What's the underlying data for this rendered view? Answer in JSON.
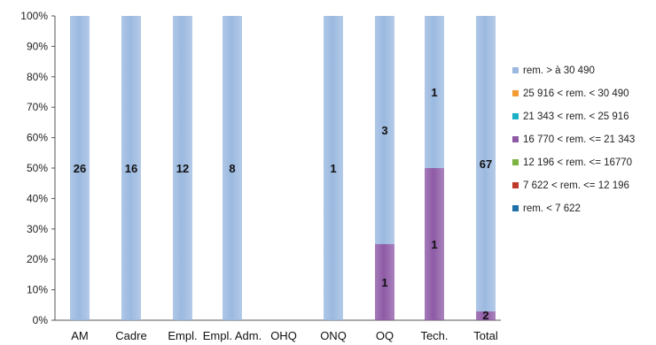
{
  "chart_data": {
    "type": "bar",
    "stacked": "percent",
    "categories": [
      "AM",
      "Cadre",
      "Empl.",
      "Empl. Adm.",
      "OHQ",
      "ONQ",
      "OQ",
      "Tech.",
      "Total"
    ],
    "category_labels_printed": [
      "AM",
      "Cadre",
      "Empl.",
      "Empl. Adm.",
      "OHQ",
      "ONQ",
      "OQ",
      "Tech.",
      "Total"
    ],
    "ylim": [
      0,
      100
    ],
    "y_ticks": [
      "0%",
      "10%",
      "20%",
      "30%",
      "40%",
      "50%",
      "60%",
      "70%",
      "80%",
      "90%",
      "100%"
    ],
    "grid": false,
    "legend_position": "right",
    "series": [
      {
        "name": "rem. < 7 622",
        "color": "#1f6fa8",
        "counts": [
          0,
          0,
          0,
          0,
          0,
          0,
          0,
          0,
          0
        ],
        "labels": [
          "",
          "",
          "",
          "",
          "",
          "",
          "",
          "",
          ""
        ]
      },
      {
        "name": "7 622 < rem. <= 12 196",
        "color": "#c0392b",
        "counts": [
          0,
          0,
          0,
          0,
          0,
          0,
          0,
          0,
          0
        ],
        "labels": [
          "",
          "",
          "",
          "",
          "",
          "",
          "",
          "",
          ""
        ]
      },
      {
        "name": "12 196 < rem. <= 16770",
        "color": "#7cb342",
        "counts": [
          0,
          0,
          0,
          0,
          0,
          0,
          0,
          0,
          0
        ],
        "labels": [
          "",
          "",
          "",
          "",
          "",
          "",
          "",
          "",
          ""
        ]
      },
      {
        "name": "16 770 < rem. <= 21 343",
        "color": "#8e5aa6",
        "counts": [
          0,
          0,
          0,
          0,
          0,
          0,
          1,
          1,
          2
        ],
        "labels": [
          "",
          "",
          "",
          "",
          "",
          "",
          "1",
          "1",
          "2"
        ]
      },
      {
        "name": "21 343 < rem. < 25 916",
        "color": "#1bb0c4",
        "counts": [
          0,
          0,
          0,
          0,
          0,
          0,
          0,
          0,
          0
        ],
        "labels": [
          "",
          "",
          "",
          "",
          "",
          "",
          "",
          "",
          ""
        ]
      },
      {
        "name": "25 916 < rem. < 30 490",
        "color": "#f39c33",
        "counts": [
          0,
          0,
          0,
          0,
          0,
          0,
          0,
          0,
          0
        ],
        "labels": [
          "",
          "",
          "",
          "",
          "",
          "",
          "",
          "",
          ""
        ]
      },
      {
        "name": "rem. > à 30 490",
        "color": "#9bb9e0",
        "counts": [
          26,
          16,
          12,
          8,
          0,
          1,
          3,
          1,
          67
        ],
        "labels": [
          "26",
          "16",
          "12",
          "8",
          "",
          "1",
          "3",
          "1",
          "67"
        ]
      }
    ]
  }
}
